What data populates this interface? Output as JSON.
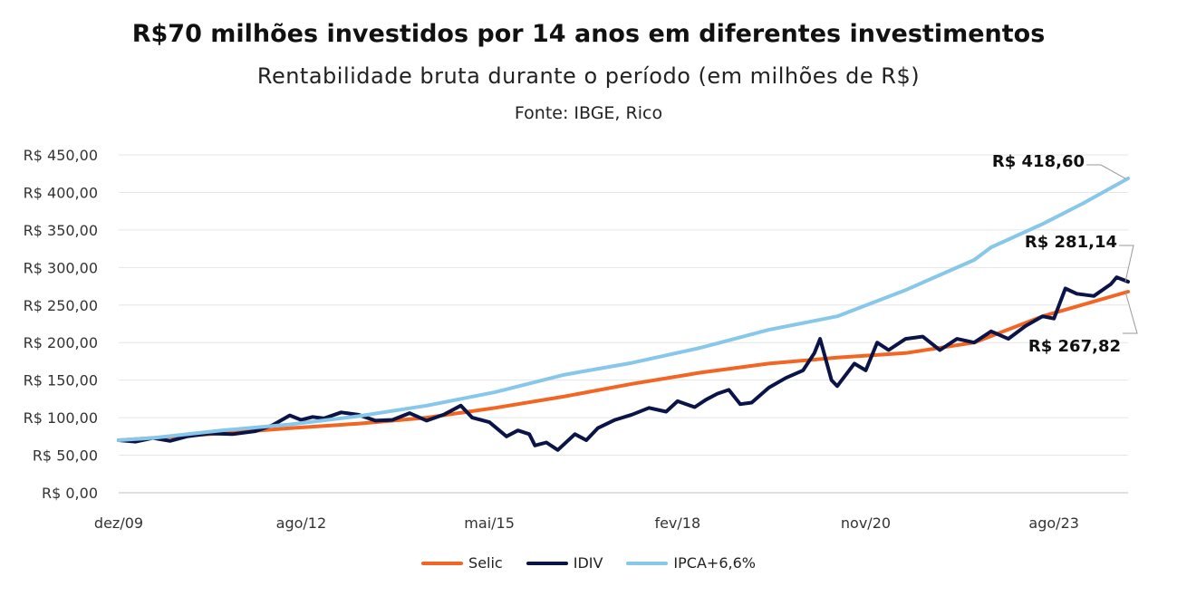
{
  "title": "R$70 milhões investidos por 14 anos em diferentes investimentos",
  "subtitle": "Rentabilidade bruta durante o período (em milhões de R$)",
  "source": "Fonte: IBGE, Rico",
  "chart_data": {
    "type": "line",
    "x_start": "2009-12",
    "x_end": "2024-09",
    "x_tick_labels": [
      "dez/09",
      "ago/12",
      "mai/15",
      "fev/18",
      "nov/20",
      "ago/23"
    ],
    "x_tick_dates": [
      "2009-12",
      "2012-08",
      "2015-05",
      "2018-02",
      "2020-11",
      "2023-08"
    ],
    "y_tick_labels": [
      "R$ 0,00",
      "R$ 50,00",
      "R$ 100,00",
      "R$ 150,00",
      "R$ 200,00",
      "R$ 250,00",
      "R$ 300,00",
      "R$ 350,00",
      "R$ 400,00",
      "R$ 450,00"
    ],
    "ylim": [
      0,
      450
    ],
    "grid": true,
    "legend_position": "bottom",
    "series": [
      {
        "name": "Selic",
        "color": "#f26522",
        "points": [
          [
            "2009-12",
            70
          ],
          [
            "2010-06",
            73
          ],
          [
            "2011-06",
            79
          ],
          [
            "2012-06",
            86
          ],
          [
            "2013-06",
            92
          ],
          [
            "2014-06",
            100
          ],
          [
            "2015-06",
            113
          ],
          [
            "2016-06",
            128
          ],
          [
            "2017-06",
            145
          ],
          [
            "2018-06",
            160
          ],
          [
            "2019-06",
            172
          ],
          [
            "2020-06",
            180
          ],
          [
            "2021-06",
            186
          ],
          [
            "2022-06",
            200
          ],
          [
            "2023-06",
            235
          ],
          [
            "2024-09",
            267.82
          ]
        ]
      },
      {
        "name": "IDIV",
        "color": "#0b1446",
        "points": [
          [
            "2009-12",
            70
          ],
          [
            "2010-03",
            68
          ],
          [
            "2010-06",
            73
          ],
          [
            "2010-09",
            69
          ],
          [
            "2010-12",
            75
          ],
          [
            "2011-04",
            79
          ],
          [
            "2011-08",
            78
          ],
          [
            "2011-12",
            82
          ],
          [
            "2012-03",
            90
          ],
          [
            "2012-06",
            103
          ],
          [
            "2012-08",
            97
          ],
          [
            "2012-10",
            101
          ],
          [
            "2012-12",
            99
          ],
          [
            "2013-03",
            107
          ],
          [
            "2013-06",
            104
          ],
          [
            "2013-09",
            96
          ],
          [
            "2013-12",
            97
          ],
          [
            "2014-03",
            106
          ],
          [
            "2014-06",
            96
          ],
          [
            "2014-09",
            104
          ],
          [
            "2014-12",
            116
          ],
          [
            "2015-02",
            100
          ],
          [
            "2015-05",
            94
          ],
          [
            "2015-08",
            75
          ],
          [
            "2015-10",
            83
          ],
          [
            "2015-12",
            78
          ],
          [
            "2016-01",
            63
          ],
          [
            "2016-03",
            67
          ],
          [
            "2016-05",
            57
          ],
          [
            "2016-08",
            78
          ],
          [
            "2016-10",
            70
          ],
          [
            "2016-12",
            86
          ],
          [
            "2017-03",
            97
          ],
          [
            "2017-06",
            104
          ],
          [
            "2017-09",
            113
          ],
          [
            "2017-12",
            108
          ],
          [
            "2018-02",
            122
          ],
          [
            "2018-05",
            114
          ],
          [
            "2018-07",
            124
          ],
          [
            "2018-09",
            132
          ],
          [
            "2018-11",
            137
          ],
          [
            "2019-01",
            118
          ],
          [
            "2019-03",
            120
          ],
          [
            "2019-06",
            140
          ],
          [
            "2019-09",
            153
          ],
          [
            "2019-12",
            163
          ],
          [
            "2020-02",
            186
          ],
          [
            "2020-03",
            205
          ],
          [
            "2020-05",
            150
          ],
          [
            "2020-06",
            142
          ],
          [
            "2020-09",
            172
          ],
          [
            "2020-11",
            163
          ],
          [
            "2021-01",
            200
          ],
          [
            "2021-03",
            190
          ],
          [
            "2021-06",
            205
          ],
          [
            "2021-09",
            208
          ],
          [
            "2021-12",
            190
          ],
          [
            "2022-03",
            205
          ],
          [
            "2022-06",
            200
          ],
          [
            "2022-09",
            215
          ],
          [
            "2022-12",
            205
          ],
          [
            "2023-03",
            222
          ],
          [
            "2023-06",
            235
          ],
          [
            "2023-08",
            232
          ],
          [
            "2023-10",
            272
          ],
          [
            "2023-12",
            265
          ],
          [
            "2024-03",
            262
          ],
          [
            "2024-06",
            278
          ],
          [
            "2024-07",
            287
          ],
          [
            "2024-09",
            281.14
          ]
        ]
      },
      {
        "name": "IPCA+6,6%",
        "color": "#87c7ea",
        "points": [
          [
            "2009-12",
            70
          ],
          [
            "2010-06",
            73
          ],
          [
            "2011-06",
            83
          ],
          [
            "2012-06",
            91
          ],
          [
            "2013-06",
            102
          ],
          [
            "2014-06",
            116
          ],
          [
            "2015-06",
            134
          ],
          [
            "2016-06",
            157
          ],
          [
            "2017-06",
            173
          ],
          [
            "2018-06",
            193
          ],
          [
            "2019-06",
            217
          ],
          [
            "2020-06",
            235
          ],
          [
            "2021-06",
            270
          ],
          [
            "2022-06",
            310
          ],
          [
            "2022-09",
            327
          ],
          [
            "2023-06",
            358
          ],
          [
            "2024-01",
            385
          ],
          [
            "2024-09",
            418.6
          ]
        ]
      }
    ],
    "annotations": [
      {
        "text": "R$ 418,60",
        "series": "IPCA+6,6%"
      },
      {
        "text": "R$ 281,14",
        "series": "IDIV"
      },
      {
        "text": "R$ 267,82",
        "series": "Selic"
      }
    ]
  }
}
